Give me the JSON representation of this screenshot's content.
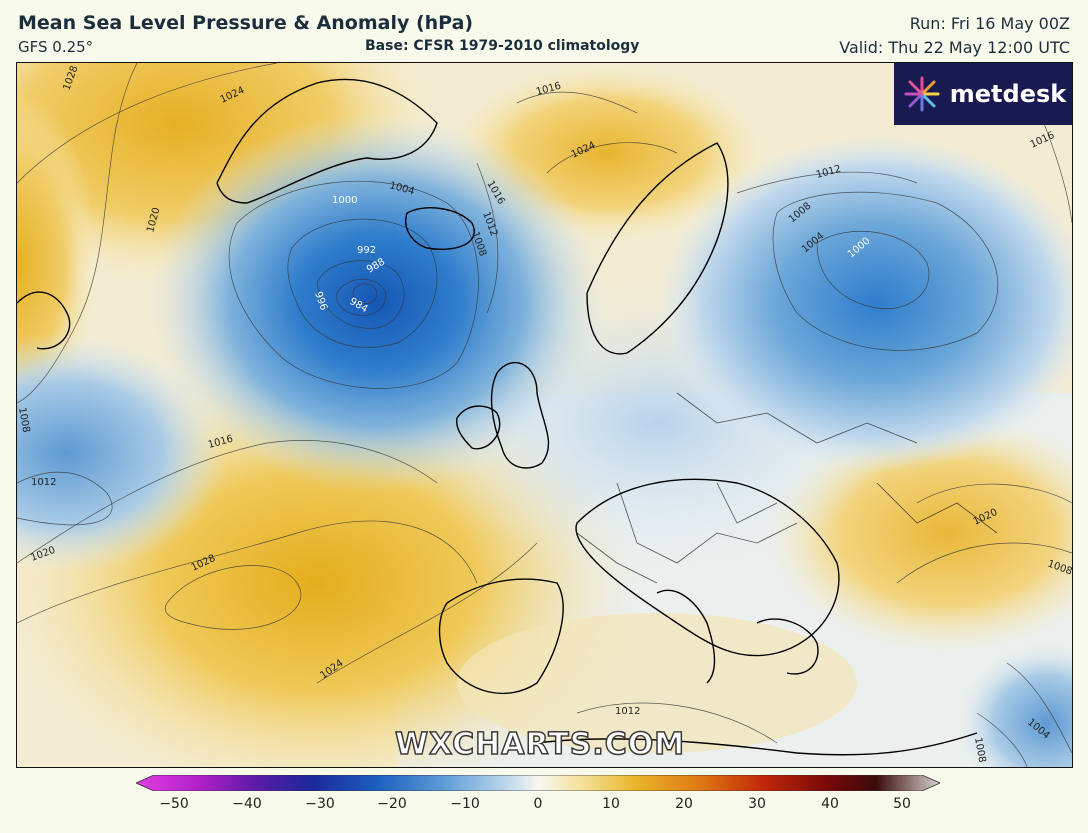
{
  "header": {
    "title": "Mean Sea Level Pressure & Anomaly (hPa)",
    "model": "GFS 0.25°",
    "base": "Base: CFSR 1979-2010 climatology",
    "run": "Run: Fri 16 May 00Z",
    "valid": "Valid: Thu 22 May 12:00 UTC"
  },
  "branding": {
    "logo_text": "metdesk",
    "watermark": "WXCHARTS.COM"
  },
  "isobar_labels": [
    "1028",
    "1024",
    "1016",
    "1020",
    "1024",
    "1000",
    "1004",
    "1012",
    "1016",
    "1008",
    "992",
    "988",
    "996",
    "984",
    "1012",
    "1008",
    "1004",
    "1000",
    "1016",
    "1008",
    "1016",
    "1012",
    "1020",
    "1028",
    "1024",
    "1012",
    "1020",
    "1008",
    "1004",
    "1008"
  ],
  "colorbar": {
    "ticks": [
      "−50",
      "−40",
      "−30",
      "−20",
      "−10",
      "0",
      "10",
      "20",
      "30",
      "40",
      "50"
    ],
    "min": -50,
    "max": 50
  },
  "colors": {
    "negative_strong": "#1f6fc8",
    "negative_light": "#c9dcec",
    "neutral": "#f7f7f2",
    "positive_light": "#f4e09a",
    "positive_strong": "#e8b322"
  }
}
